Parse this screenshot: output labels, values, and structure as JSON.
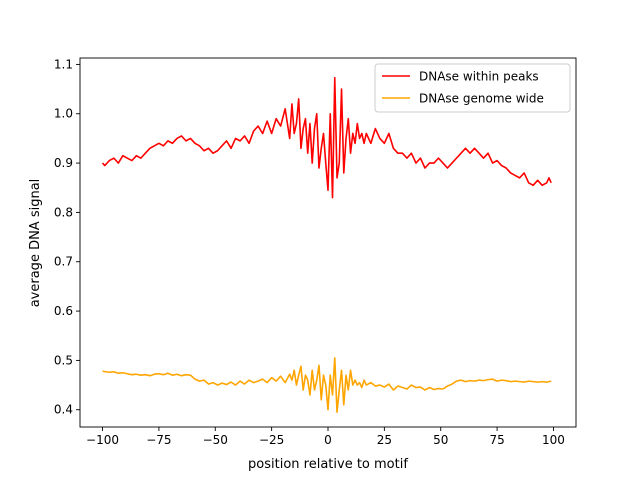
{
  "chart_data": {
    "type": "line",
    "title": "",
    "xlabel": "position relative to motif",
    "ylabel": "average DNA signal",
    "xlim": [
      -110,
      110
    ],
    "ylim": [
      0.365,
      1.113
    ],
    "xticks": [
      -100,
      -75,
      -50,
      -25,
      0,
      25,
      50,
      75,
      100
    ],
    "xtick_labels": [
      "−100",
      "−75",
      "−50",
      "−25",
      "0",
      "25",
      "50",
      "75",
      "100"
    ],
    "yticks": [
      0.4,
      0.5,
      0.6,
      0.7,
      0.8,
      0.9,
      1.0,
      1.1
    ],
    "ytick_labels": [
      "0.4",
      "0.5",
      "0.6",
      "0.7",
      "0.8",
      "0.9",
      "1.0",
      "1.1"
    ],
    "grid": false,
    "legend_position": "top-right",
    "series": [
      {
        "name": "DNAse within peaks",
        "color": "#ff0000",
        "x": [
          -100,
          -99,
          -97,
          -95,
          -93,
          -91,
          -89,
          -87,
          -85,
          -83,
          -81,
          -79,
          -77,
          -75,
          -73,
          -71,
          -69,
          -67,
          -65,
          -63,
          -61,
          -59,
          -57,
          -55,
          -53,
          -51,
          -49,
          -47,
          -45,
          -43,
          -41,
          -39,
          -37,
          -35,
          -33,
          -31,
          -29,
          -27,
          -25,
          -23,
          -21,
          -19,
          -17,
          -16,
          -15,
          -14,
          -13,
          -12,
          -11,
          -10,
          -9,
          -8,
          -7,
          -6,
          -5,
          -4,
          -3,
          -2,
          -1,
          0,
          1,
          2,
          3,
          4,
          5,
          6,
          7,
          8,
          9,
          10,
          11,
          12,
          13,
          14,
          15,
          16,
          17,
          19,
          21,
          23,
          25,
          27,
          29,
          31,
          33,
          35,
          37,
          39,
          41,
          43,
          45,
          47,
          49,
          51,
          53,
          55,
          57,
          59,
          61,
          63,
          65,
          67,
          69,
          71,
          73,
          75,
          77,
          79,
          81,
          83,
          85,
          87,
          89,
          91,
          93,
          95,
          97,
          98,
          99
        ],
        "values": [
          0.9,
          0.895,
          0.905,
          0.91,
          0.9,
          0.915,
          0.91,
          0.905,
          0.915,
          0.91,
          0.92,
          0.93,
          0.935,
          0.94,
          0.935,
          0.945,
          0.94,
          0.95,
          0.955,
          0.945,
          0.95,
          0.94,
          0.935,
          0.925,
          0.93,
          0.92,
          0.925,
          0.935,
          0.945,
          0.93,
          0.95,
          0.945,
          0.955,
          0.94,
          0.965,
          0.975,
          0.96,
          0.985,
          0.96,
          0.99,
          0.975,
          1.01,
          0.95,
          1.02,
          0.96,
          0.98,
          1.03,
          0.93,
          0.97,
          0.99,
          0.92,
          0.98,
          0.9,
          0.97,
          1.0,
          0.89,
          0.93,
          0.96,
          0.9,
          0.845,
          1.0,
          0.83,
          1.073,
          0.87,
          0.9,
          1.05,
          0.88,
          0.95,
          0.99,
          0.92,
          0.96,
          0.94,
          0.98,
          0.95,
          0.96,
          0.94,
          0.96,
          0.94,
          0.97,
          0.95,
          0.94,
          0.96,
          0.93,
          0.92,
          0.92,
          0.91,
          0.92,
          0.9,
          0.91,
          0.89,
          0.9,
          0.9,
          0.91,
          0.9,
          0.89,
          0.9,
          0.91,
          0.92,
          0.93,
          0.92,
          0.93,
          0.92,
          0.91,
          0.92,
          0.9,
          0.905,
          0.895,
          0.89,
          0.88,
          0.875,
          0.87,
          0.88,
          0.86,
          0.855,
          0.865,
          0.855,
          0.86,
          0.87,
          0.86
        ]
      },
      {
        "name": "DNAse genome wide",
        "color": "#ffa500",
        "x": [
          -100,
          -97,
          -95,
          -93,
          -91,
          -89,
          -87,
          -85,
          -83,
          -81,
          -79,
          -77,
          -75,
          -73,
          -71,
          -69,
          -67,
          -65,
          -63,
          -61,
          -59,
          -57,
          -55,
          -53,
          -51,
          -49,
          -47,
          -45,
          -43,
          -41,
          -39,
          -37,
          -35,
          -33,
          -31,
          -29,
          -27,
          -25,
          -23,
          -21,
          -19,
          -17,
          -16,
          -15,
          -14,
          -13,
          -12,
          -11,
          -10,
          -9,
          -8,
          -7,
          -6,
          -5,
          -4,
          -3,
          -2,
          -1,
          0,
          1,
          2,
          3,
          4,
          5,
          6,
          7,
          8,
          9,
          10,
          11,
          12,
          13,
          14,
          15,
          16,
          17,
          19,
          21,
          23,
          25,
          27,
          29,
          31,
          33,
          35,
          37,
          39,
          41,
          43,
          45,
          47,
          49,
          51,
          53,
          55,
          57,
          59,
          61,
          63,
          65,
          67,
          69,
          71,
          73,
          75,
          77,
          79,
          81,
          83,
          85,
          87,
          89,
          91,
          93,
          95,
          97,
          99
        ],
        "values": [
          0.478,
          0.476,
          0.477,
          0.474,
          0.475,
          0.473,
          0.471,
          0.472,
          0.47,
          0.471,
          0.469,
          0.472,
          0.473,
          0.471,
          0.474,
          0.47,
          0.472,
          0.469,
          0.471,
          0.47,
          0.462,
          0.458,
          0.46,
          0.452,
          0.455,
          0.45,
          0.454,
          0.451,
          0.456,
          0.45,
          0.458,
          0.452,
          0.46,
          0.455,
          0.458,
          0.462,
          0.455,
          0.465,
          0.458,
          0.468,
          0.455,
          0.472,
          0.46,
          0.48,
          0.45,
          0.47,
          0.488,
          0.44,
          0.47,
          0.46,
          0.43,
          0.48,
          0.44,
          0.46,
          0.49,
          0.42,
          0.47,
          0.45,
          0.4,
          0.47,
          0.43,
          0.505,
          0.395,
          0.44,
          0.48,
          0.41,
          0.47,
          0.44,
          0.48,
          0.45,
          0.46,
          0.45,
          0.455,
          0.445,
          0.46,
          0.45,
          0.455,
          0.448,
          0.45,
          0.446,
          0.452,
          0.44,
          0.448,
          0.445,
          0.442,
          0.45,
          0.445,
          0.446,
          0.44,
          0.445,
          0.441,
          0.443,
          0.442,
          0.448,
          0.452,
          0.458,
          0.46,
          0.457,
          0.459,
          0.458,
          0.46,
          0.459,
          0.461,
          0.462,
          0.458,
          0.46,
          0.459,
          0.457,
          0.458,
          0.457,
          0.456,
          0.458,
          0.457,
          0.456,
          0.457,
          0.456,
          0.458
        ]
      }
    ]
  }
}
